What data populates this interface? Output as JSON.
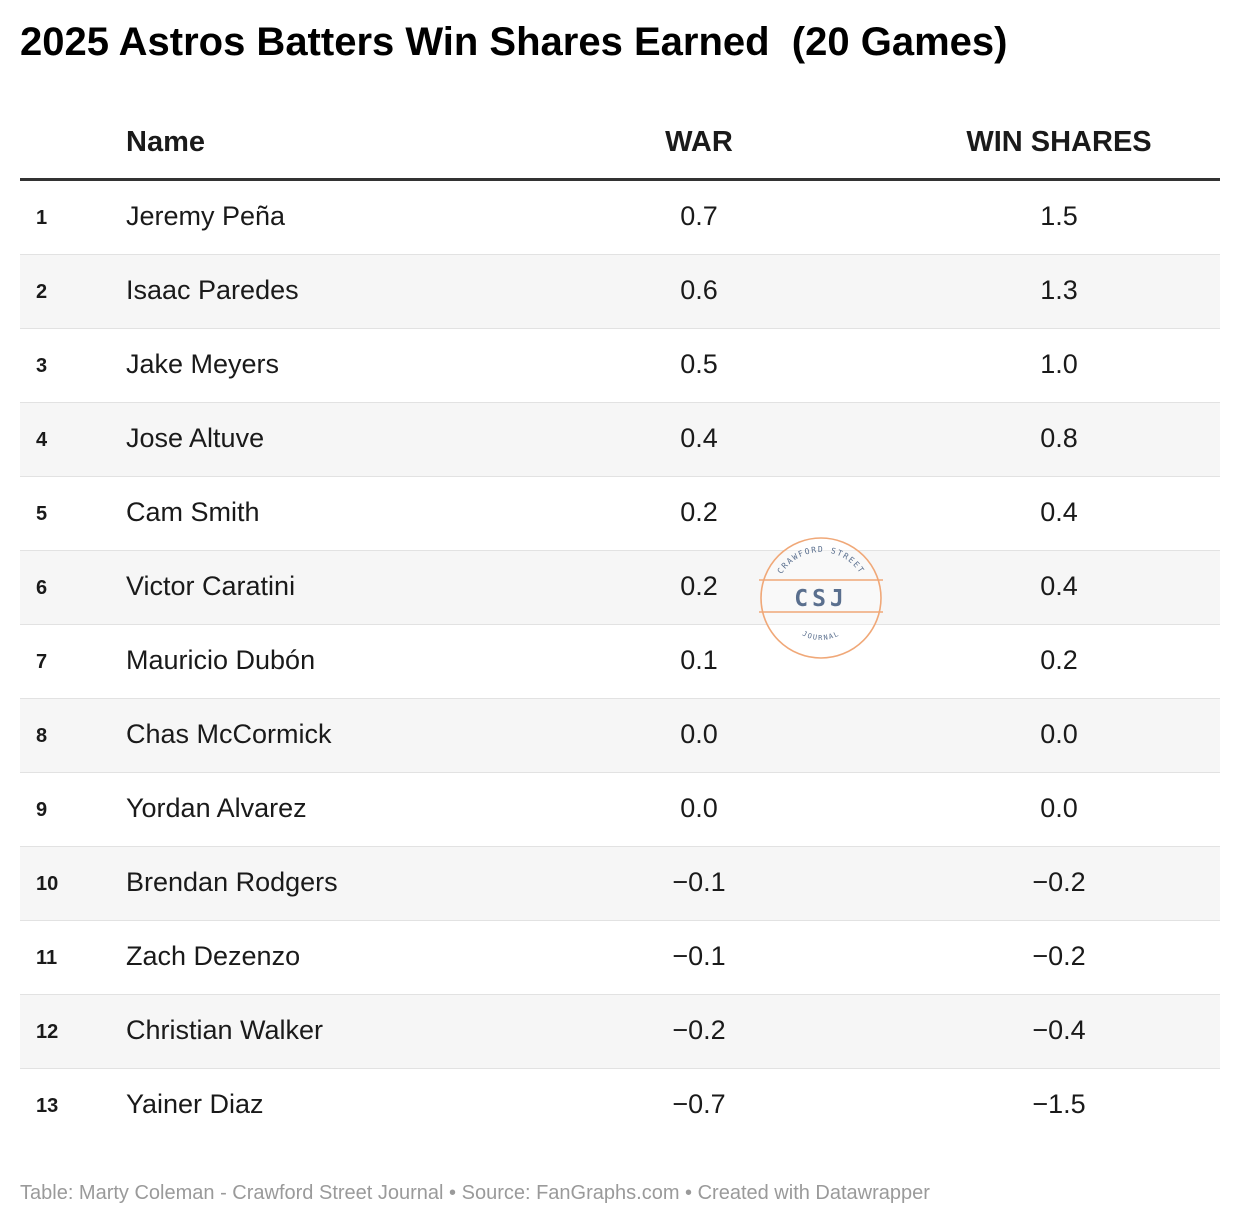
{
  "title": "2025 Astros Batters Win Shares Earned  (20 Games)",
  "columns": {
    "name": "Name",
    "war": "WAR",
    "win_shares": "WIN SHARES"
  },
  "chart_data": {
    "type": "table",
    "title": "2025 Astros Batters Win Shares Earned  (20 Games)",
    "columns": [
      "",
      "Name",
      "WAR",
      "WIN SHARES"
    ],
    "rows": [
      {
        "rank": "1",
        "name": "Jeremy Peña",
        "war": "0.7",
        "win_shares": "1.5"
      },
      {
        "rank": "2",
        "name": "Isaac Paredes",
        "war": "0.6",
        "win_shares": "1.3"
      },
      {
        "rank": "3",
        "name": "Jake Meyers",
        "war": "0.5",
        "win_shares": "1.0"
      },
      {
        "rank": "4",
        "name": "Jose Altuve",
        "war": "0.4",
        "win_shares": "0.8"
      },
      {
        "rank": "5",
        "name": "Cam Smith",
        "war": "0.2",
        "win_shares": "0.4"
      },
      {
        "rank": "6",
        "name": "Victor Caratini",
        "war": "0.2",
        "win_shares": "0.4"
      },
      {
        "rank": "7",
        "name": "Mauricio Dubón",
        "war": "0.1",
        "win_shares": "0.2"
      },
      {
        "rank": "8",
        "name": "Chas McCormick",
        "war": "0.0",
        "win_shares": "0.0"
      },
      {
        "rank": "9",
        "name": "Yordan Alvarez",
        "war": "0.0",
        "win_shares": "0.0"
      },
      {
        "rank": "10",
        "name": "Brendan Rodgers",
        "war": "−0.1",
        "win_shares": "−0.2"
      },
      {
        "rank": "11",
        "name": "Zach Dezenzo",
        "war": "−0.1",
        "win_shares": "−0.2"
      },
      {
        "rank": "12",
        "name": "Christian Walker",
        "war": "−0.2",
        "win_shares": "−0.4"
      },
      {
        "rank": "13",
        "name": "Yainer Diaz",
        "war": "−0.7",
        "win_shares": "−1.5"
      }
    ]
  },
  "watermark": {
    "top_text": "CRAWFORD STREET",
    "initials": "CSJ",
    "bottom_text": "JOURNAL",
    "stamp_color": "#f0a878",
    "initials_color": "#5a6f8e"
  },
  "footer": "Table: Marty Coleman - Crawford Street Journal • Source: FanGraphs.com • Created with Datawrapper"
}
